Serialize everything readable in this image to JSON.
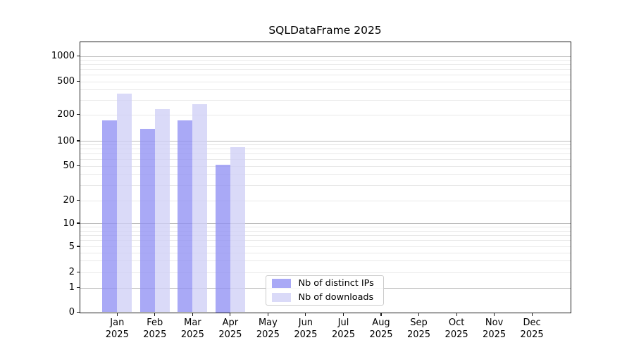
{
  "chart_data": {
    "type": "bar",
    "title": "SQLDataFrame 2025",
    "categories": [
      "Jan",
      "Feb",
      "Mar",
      "Apr",
      "May",
      "Jun",
      "Jul",
      "Aug",
      "Sep",
      "Oct",
      "Nov",
      "Dec"
    ],
    "category_year": "2025",
    "series": [
      {
        "name": "Nb of distinct IPs",
        "color": "#a6a6f3",
        "values": [
          170,
          136,
          172,
          52,
          0,
          0,
          0,
          0,
          0,
          0,
          0,
          0
        ]
      },
      {
        "name": "Nb of downloads",
        "color": "#dadaf8",
        "values": [
          356,
          231,
          267,
          84,
          0,
          0,
          0,
          0,
          0,
          0,
          0,
          0
        ]
      }
    ],
    "y_ticks": [
      0,
      1,
      2,
      5,
      10,
      20,
      50,
      100,
      200,
      500,
      1000
    ],
    "y_scale": "asinh (log-like, linear near 0)",
    "ylim": [
      0,
      1480
    ],
    "xlabel": "",
    "ylabel": "",
    "grid": "on (log minor + decade major gridlines)",
    "legend_position": "lower center"
  },
  "colors": {
    "bar_distinct_ips": "rgba(145,145,244,0.78)",
    "bar_downloads": "rgba(208,208,246,0.78)",
    "grid_major": "#bcbcbc",
    "grid_minor": "#e9e9e9",
    "spine": "#1a1a1a",
    "text": "#000000",
    "legend_border": "#cbcbcb"
  }
}
